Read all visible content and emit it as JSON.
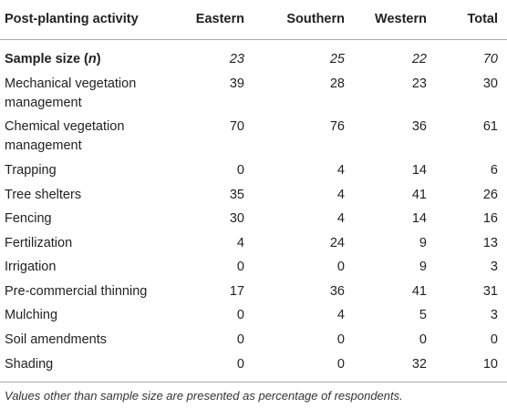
{
  "table": {
    "headers": {
      "activity": "Post-planting activity",
      "eastern": "Eastern",
      "southern": "Southern",
      "western": "Western",
      "total": "Total"
    },
    "sample_size": {
      "label_main": "Sample size (",
      "label_n": "n",
      "label_close": ")",
      "eastern": "23",
      "southern": "25",
      "western": "22",
      "total": "70"
    },
    "rows": [
      {
        "activity": "Mechanical vegetation management",
        "eastern": "39",
        "southern": "28",
        "western": "23",
        "total": "30"
      },
      {
        "activity": "Chemical vegetation management",
        "eastern": "70",
        "southern": "76",
        "western": "36",
        "total": "61"
      },
      {
        "activity": "Trapping",
        "eastern": "0",
        "southern": "4",
        "western": "14",
        "total": "6"
      },
      {
        "activity": "Tree shelters",
        "eastern": "35",
        "southern": "4",
        "western": "41",
        "total": "26"
      },
      {
        "activity": "Fencing",
        "eastern": "30",
        "southern": "4",
        "western": "14",
        "total": "16"
      },
      {
        "activity": "Fertilization",
        "eastern": "4",
        "southern": "24",
        "western": "9",
        "total": "13"
      },
      {
        "activity": "Irrigation",
        "eastern": "0",
        "southern": "0",
        "western": "9",
        "total": "3"
      },
      {
        "activity": "Pre-commercial thinning",
        "eastern": "17",
        "southern": "36",
        "western": "41",
        "total": "31"
      },
      {
        "activity": "Mulching",
        "eastern": "0",
        "southern": "4",
        "western": "5",
        "total": "3"
      },
      {
        "activity": "Soil amendments",
        "eastern": "0",
        "southern": "0",
        "western": "0",
        "total": "0"
      },
      {
        "activity": "Shading",
        "eastern": "0",
        "southern": "0",
        "western": "32",
        "total": "10"
      }
    ],
    "footnote": "Values other than sample size are presented as percentage of respondents."
  }
}
